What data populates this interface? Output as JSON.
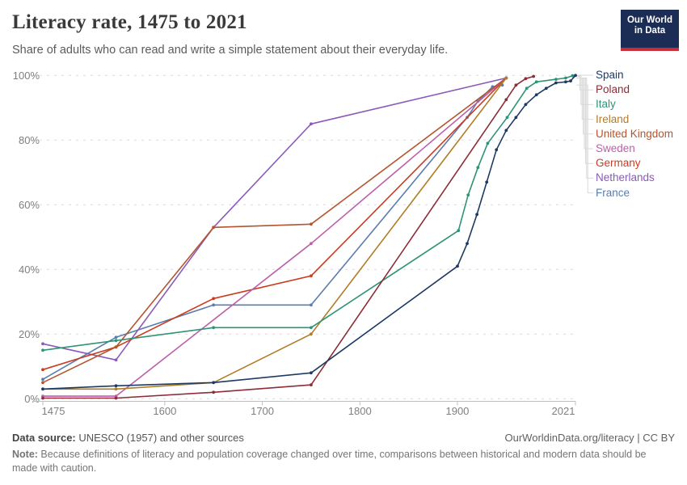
{
  "header": {
    "title": "Literacy rate, 1475 to 2021",
    "subtitle": "Share of adults who can read and write a simple statement about their everyday life."
  },
  "logo": {
    "line1": "Our World",
    "line2": "in Data",
    "bg": "#1B2D54",
    "bar": "#C62F39"
  },
  "chart_data": {
    "type": "line",
    "title": "Literacy rate, 1475 to 2021",
    "xlabel": "",
    "ylabel": "",
    "xlim": [
      1475,
      2021
    ],
    "ylim": [
      0,
      100
    ],
    "x_ticks": [
      1475,
      1600,
      1700,
      1800,
      1900,
      2021
    ],
    "y_ticks": [
      0,
      20,
      40,
      60,
      80,
      100
    ],
    "y_suffix": "%",
    "grid": "horizontal-dashed",
    "legend_position": "right",
    "colors": {
      "grid": "#dcdcdc",
      "axis": "#bfbfbf",
      "tick_text": "#7f7f7f",
      "connector": "#d9d9d9"
    },
    "series": [
      {
        "name": "Spain",
        "color": "#1d3b62",
        "points": [
          [
            1475,
            3
          ],
          [
            1550,
            4
          ],
          [
            1650,
            5
          ],
          [
            1750,
            8
          ],
          [
            1900,
            41
          ],
          [
            1910,
            48
          ],
          [
            1920,
            57
          ],
          [
            1930,
            67
          ],
          [
            1940,
            77
          ],
          [
            1950,
            83
          ],
          [
            1960,
            87
          ],
          [
            1970,
            91
          ],
          [
            1981,
            94
          ],
          [
            1991,
            96
          ],
          [
            2001,
            97.7
          ],
          [
            2011,
            98
          ],
          [
            2016,
            98.3
          ],
          [
            2021,
            100
          ]
        ]
      },
      {
        "name": "Poland",
        "color": "#8C2D37",
        "points": [
          [
            1475,
            0.2
          ],
          [
            1550,
            0.2
          ],
          [
            1650,
            2
          ],
          [
            1750,
            4.3
          ],
          [
            1950,
            92.5
          ],
          [
            1960,
            97
          ],
          [
            1970,
            99
          ],
          [
            1978,
            99.7
          ]
        ]
      },
      {
        "name": "Italy",
        "color": "#2e9377",
        "points": [
          [
            1475,
            15
          ],
          [
            1550,
            18
          ],
          [
            1650,
            22
          ],
          [
            1750,
            22
          ],
          [
            1901,
            52
          ],
          [
            1911,
            63
          ],
          [
            1921,
            71.5
          ],
          [
            1931,
            79
          ],
          [
            1951,
            87
          ],
          [
            1971,
            96
          ],
          [
            1981,
            98
          ],
          [
            2001,
            98.8
          ],
          [
            2011,
            99.2
          ],
          [
            2018,
            99.9
          ]
        ]
      },
      {
        "name": "Ireland",
        "color": "#B07D28",
        "points": [
          [
            1475,
            3
          ],
          [
            1550,
            3
          ],
          [
            1650,
            5
          ],
          [
            1750,
            20
          ],
          [
            1950,
            99.2
          ]
        ]
      },
      {
        "name": "United Kingdom",
        "color": "#B4552D",
        "points": [
          [
            1475,
            5
          ],
          [
            1550,
            16
          ],
          [
            1650,
            53
          ],
          [
            1750,
            54
          ],
          [
            1950,
            99.2
          ]
        ]
      },
      {
        "name": "Sweden",
        "color": "#BC5FA9",
        "points": [
          [
            1475,
            0.8
          ],
          [
            1550,
            0.8
          ],
          [
            1750,
            48
          ],
          [
            1950,
            99.2
          ]
        ]
      },
      {
        "name": "Germany",
        "color": "#C93C20",
        "points": [
          [
            1475,
            9
          ],
          [
            1550,
            16
          ],
          [
            1650,
            31
          ],
          [
            1750,
            38
          ],
          [
            1950,
            99.2
          ]
        ]
      },
      {
        "name": "Netherlands",
        "color": "#8A5AB8",
        "points": [
          [
            1475,
            17
          ],
          [
            1550,
            12
          ],
          [
            1650,
            53
          ],
          [
            1750,
            85
          ],
          [
            1950,
            99.2
          ]
        ]
      },
      {
        "name": "France",
        "color": "#5B7CAE",
        "points": [
          [
            1475,
            6
          ],
          [
            1550,
            19
          ],
          [
            1650,
            29
          ],
          [
            1750,
            29
          ],
          [
            1910,
            87
          ],
          [
            1921,
            92
          ],
          [
            1936,
            96.5
          ],
          [
            1946,
            97
          ]
        ]
      }
    ]
  },
  "footer": {
    "source_label": "Data source:",
    "source_text": " UNESCO (1957) and other sources",
    "link": "OurWorldinData.org/literacy | CC BY",
    "note_label": "Note:",
    "note_text": " Because definitions of literacy and population coverage changed over time, comparisons between historical and modern data should be made with caution."
  }
}
